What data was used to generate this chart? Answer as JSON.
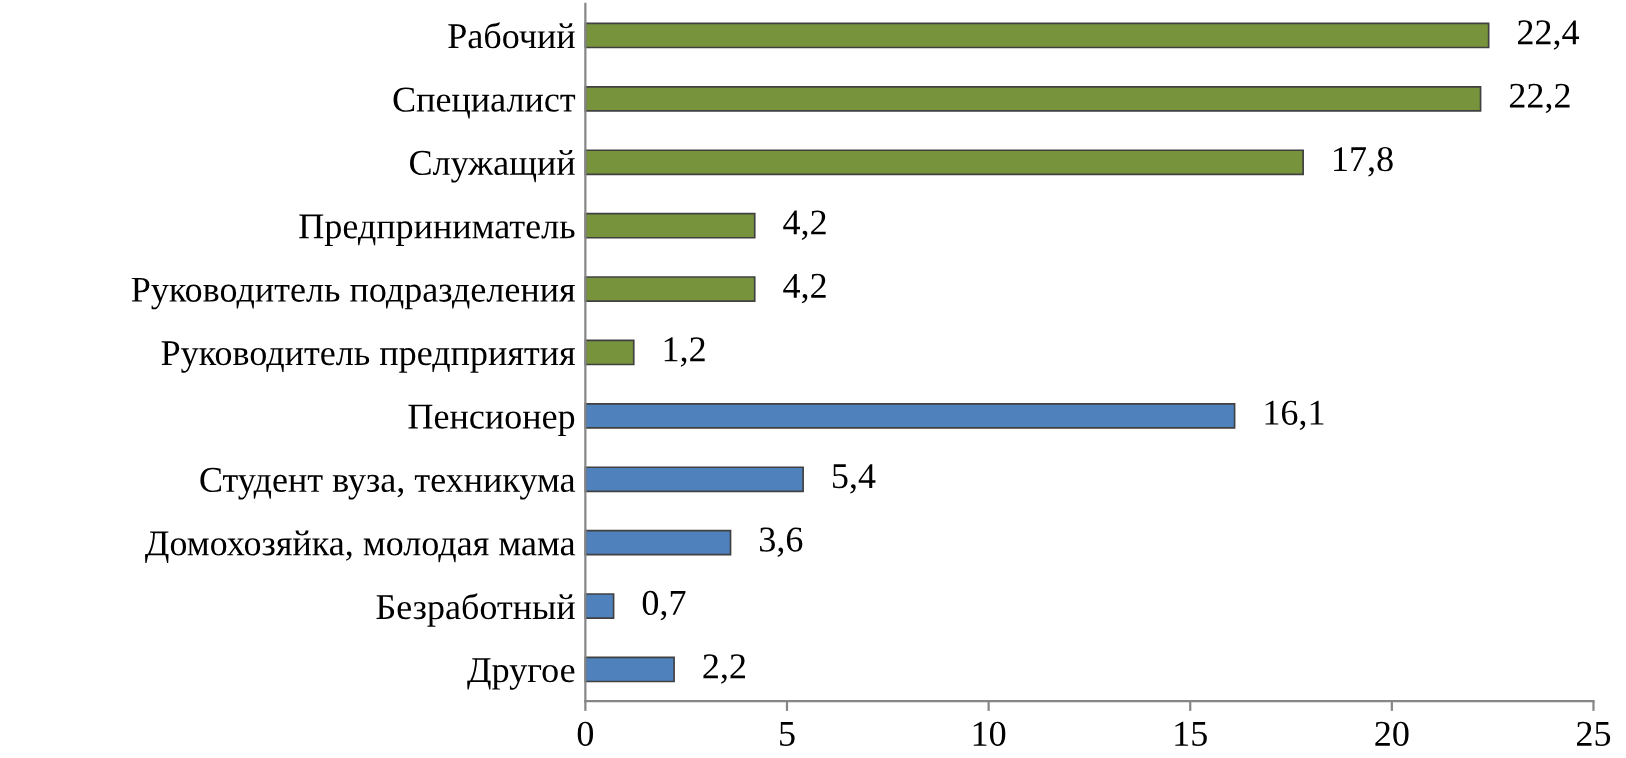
{
  "chart_data": {
    "type": "bar",
    "orientation": "horizontal",
    "categories": [
      "Рабочий",
      "Специалист",
      "Служащий",
      "Предприниматель",
      "Руководитель подразделения",
      "Руководитель предприятия",
      "Пенсионер",
      "Студент вуза, техникума",
      "Домохозяйка, молодая мама",
      "Безработный",
      "Другое"
    ],
    "values": [
      22.4,
      22.2,
      17.8,
      4.2,
      4.2,
      1.2,
      16.1,
      5.4,
      3.6,
      0.7,
      2.2
    ],
    "value_labels": [
      "22,4",
      "22,2",
      "17,8",
      "4,2",
      "4,2",
      "1,2",
      "16,1",
      "5,4",
      "3,6",
      "0,7",
      "2,2"
    ],
    "colors": [
      "#77933c",
      "#77933c",
      "#77933c",
      "#77933c",
      "#77933c",
      "#77933c",
      "#4f81bd",
      "#4f81bd",
      "#4f81bd",
      "#4f81bd",
      "#4f81bd"
    ],
    "xlim": [
      0,
      25
    ],
    "xticks": [
      0,
      5,
      10,
      15,
      20,
      25
    ],
    "grid": false,
    "legend": false
  }
}
